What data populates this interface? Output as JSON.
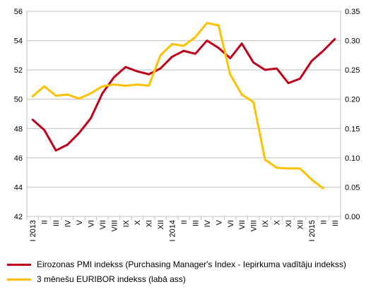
{
  "chart_data": {
    "type": "line",
    "x": [
      "I 2013",
      "II",
      "III",
      "IV",
      "V",
      "VI",
      "VII",
      "VIII",
      "IX",
      "X",
      "XI",
      "XII",
      "I 2014",
      "II",
      "III",
      "IV",
      "V",
      "VI",
      "VII",
      "VIII",
      "IX",
      "X",
      "XI",
      "XII",
      "I 2015",
      "II",
      "III"
    ],
    "series": [
      {
        "name": "Eirozonas PMI indekss (Purchasing Manager's Index - Iepirkuma vadītāju indekss)",
        "axis": "left",
        "color": "#c0001a",
        "values": [
          48.6,
          47.9,
          46.5,
          46.9,
          47.7,
          48.7,
          50.4,
          51.5,
          52.2,
          51.9,
          51.7,
          52.1,
          52.9,
          53.3,
          53.1,
          54.0,
          53.5,
          52.8,
          53.8,
          52.5,
          52.0,
          52.1,
          51.1,
          51.4,
          52.6,
          53.3,
          54.1
        ]
      },
      {
        "name": "3 mēnešu EURIBOR indekss (labā ass)",
        "axis": "right",
        "color": "#ffc000",
        "values": [
          0.205,
          0.222,
          0.206,
          0.208,
          0.201,
          0.21,
          0.222,
          0.225,
          0.223,
          0.225,
          0.223,
          0.275,
          0.294,
          0.291,
          0.306,
          0.33,
          0.326,
          0.242,
          0.208,
          0.195,
          0.097,
          0.083,
          0.082,
          0.082,
          0.063,
          0.048,
          null
        ]
      }
    ],
    "y_left": {
      "min": 42,
      "max": 56,
      "ticks": [
        42,
        44,
        46,
        48,
        50,
        52,
        54,
        56
      ]
    },
    "y_right": {
      "min": 0,
      "max": 0.35,
      "ticks": [
        "0.00",
        "0.05",
        "0.10",
        "0.15",
        "0.20",
        "0.25",
        "0.30",
        "0.35"
      ]
    },
    "grid": true,
    "legend_position": "bottom"
  }
}
